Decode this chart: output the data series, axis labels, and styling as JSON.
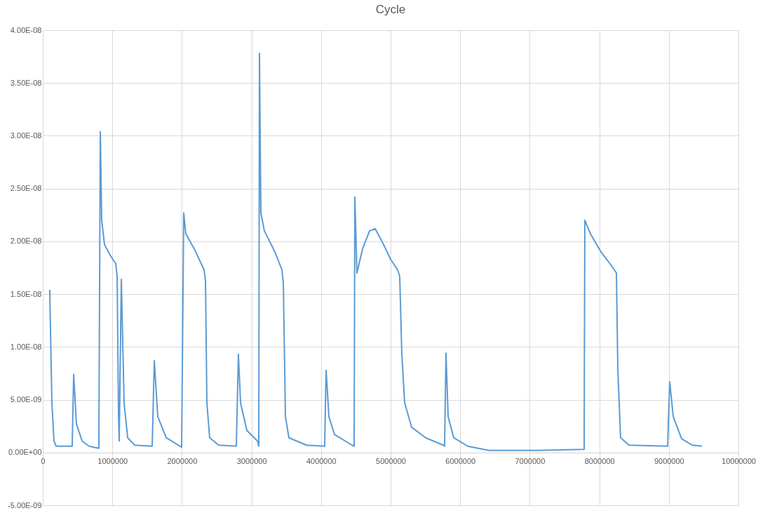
{
  "chart_data": {
    "type": "line",
    "title": "Cycle",
    "x": [
      100000,
      131000,
      161000,
      192000,
      423000,
      444000,
      484000,
      565000,
      665000,
      806000,
      827000,
      847000,
      887000,
      968000,
      1048000,
      1069000,
      1089000,
      1099000,
      1129000,
      1169000,
      1220000,
      1321000,
      1573000,
      1603000,
      1653000,
      1774000,
      1996000,
      2026000,
      2056000,
      2177000,
      2319000,
      2339000,
      2359000,
      2399000,
      2530000,
      2782000,
      2812000,
      2843000,
      2933000,
      3085000,
      3105000,
      3115000,
      3135000,
      3185000,
      3337000,
      3438000,
      3458000,
      3488000,
      3538000,
      3790000,
      4052000,
      4073000,
      4113000,
      4194000,
      4446000,
      4476000,
      4486000,
      4516000,
      4597000,
      4698000,
      4778000,
      4899000,
      5000000,
      5101000,
      5131000,
      5161000,
      5202000,
      5302000,
      5504000,
      5756000,
      5776000,
      5796000,
      5827000,
      5907000,
      6109000,
      6411000,
      7117000,
      7782000,
      7792000,
      7873000,
      8024000,
      8175000,
      8246000,
      8266000,
      8306000,
      8427000,
      8982000,
      9012000,
      9063000,
      9183000,
      9335000,
      9476000
    ],
    "series": [
      {
        "color": "#5b9bd5",
        "values": [
          1.54e-08,
          4.7e-09,
          1.1e-09,
          6e-10,
          6e-10,
          7.4e-09,
          2.7e-09,
          1.1e-09,
          6e-10,
          4e-10,
          3.04e-08,
          2.2e-08,
          1.97e-08,
          1.87e-08,
          1.79e-08,
          1.67e-08,
          3.4e-09,
          1.1e-09,
          1.64e-08,
          4.7e-09,
          1.4e-09,
          7e-10,
          6e-10,
          8.7e-09,
          3.4e-09,
          1.4e-09,
          5e-10,
          2.27e-08,
          2.07e-08,
          1.93e-08,
          1.73e-08,
          1.63e-08,
          4.7e-09,
          1.4e-09,
          7e-10,
          6e-10,
          9.3e-09,
          4.7e-09,
          2.1e-09,
          1.1e-09,
          6e-10,
          3.78e-08,
          2.27e-08,
          2.1e-08,
          1.9e-08,
          1.73e-08,
          1.6e-08,
          3.4e-09,
          1.4e-09,
          7e-10,
          6e-10,
          7.8e-09,
          3.4e-09,
          1.7e-09,
          7e-10,
          6e-10,
          2.42e-08,
          1.7e-08,
          1.93e-08,
          2.1e-08,
          2.12e-08,
          1.97e-08,
          1.83e-08,
          1.73e-08,
          1.67e-08,
          9.4e-09,
          4.7e-09,
          2.4e-09,
          1.4e-09,
          7e-10,
          6e-10,
          9.4e-09,
          3.4e-09,
          1.4e-09,
          6e-10,
          2e-10,
          2e-10,
          3e-10,
          2.2e-08,
          2.07e-08,
          1.9e-08,
          1.77e-08,
          1.7e-08,
          8e-09,
          1.4e-09,
          7e-10,
          6e-10,
          6.7e-09,
          3.4e-09,
          1.3e-09,
          7e-10,
          6e-10
        ]
      }
    ],
    "xlim": [
      0,
      10000000
    ],
    "xticks": [
      0,
      1000000,
      2000000,
      3000000,
      4000000,
      5000000,
      6000000,
      7000000,
      8000000,
      9000000,
      10000000
    ],
    "ylim": [
      -5e-09,
      4e-08
    ],
    "yticks": [
      {
        "value": -5e-09,
        "label": "-5.00E-09"
      },
      {
        "value": 0,
        "label": "0.00E+00"
      },
      {
        "value": 5e-09,
        "label": "5.00E-09"
      },
      {
        "value": 1e-08,
        "label": "1.00E-08"
      },
      {
        "value": 1.5e-08,
        "label": "1.50E-08"
      },
      {
        "value": 2e-08,
        "label": "2.00E-08"
      },
      {
        "value": 2.5e-08,
        "label": "2.50E-08"
      },
      {
        "value": 3e-08,
        "label": "3.00E-08"
      },
      {
        "value": 3.5e-08,
        "label": "3.50E-08"
      },
      {
        "value": 4e-08,
        "label": "4.00E-08"
      }
    ],
    "grid": true,
    "marker": "none",
    "line_style": "solid"
  }
}
